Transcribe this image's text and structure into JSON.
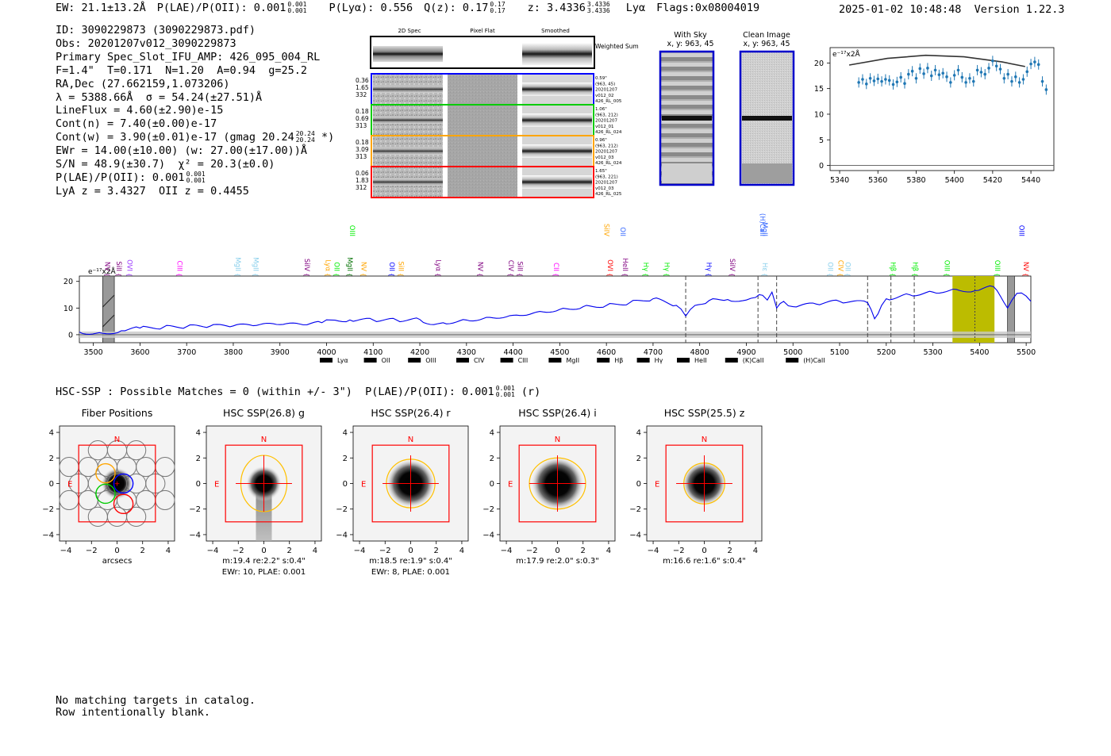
{
  "header": {
    "ew": "EW: 21.1±13.2Å",
    "plae": "P(LAE)/P(OII): 0.001",
    "plae_err_hi": "0.001",
    "plae_err_lo": "0.001",
    "plya": "P(Lyα): 0.556",
    "qz": "Q(z): 0.17",
    "qz_err_hi": "0.17",
    "qz_err_lo": "0.17",
    "z": "z: 3.4336",
    "z_err_hi": "3.4336",
    "z_err_lo": "3.4336",
    "line": "Lyα",
    "flags": "Flags:0x08004019",
    "timestamp": "2025-01-02 10:48:48  Version 1.22.3"
  },
  "info": {
    "id": "ID: 3090229873 (3090229873.pdf)",
    "obs": "Obs: 20201207v012_3090229873",
    "primary": "Primary Spec_Slot_IFU_AMP: 426_095_004_RL",
    "fit": "F=1.4\"  T=0.171  N=1.20  A=0.94  g=25.2",
    "radec": "RA,Dec (27.662159,1.073206)",
    "lambda": "λ = 5388.66Å  σ = 54.24(±27.51)Å",
    "lineflux": "LineFlux = 4.60(±2.90)e-15",
    "contn": "Cont(n) = 7.40(±0.00)e-17",
    "contw": "Cont(w) = 3.90(±0.01)e-17 (gmag 20.24",
    "contw_hi": "20.24",
    "contw_lo": "20.24",
    "contw_end": " *)",
    "ewr": "EWr = 14.00(±10.00) (w: 27.00(±17.00))Å",
    "sn": "S/N = 48.9(±30.7)  χ² = 20.3(±0.0)",
    "plae": "P(LAE)/P(OII): 0.001",
    "plae_hi": "0.001",
    "plae_lo": "0.001",
    "lya": "LyA z = 3.4327  OII z = 0.4455"
  },
  "cutouts": {
    "col_titles": [
      "2D Spec",
      "Pixel Flat",
      "Smoothed"
    ],
    "weighted_label": "Weighted Sum",
    "rows": [
      {
        "stats": [
          "0.36",
          "1.65",
          "332"
        ],
        "meta": [
          "0.59\"",
          "(963, 45)",
          "20201207",
          "v012_02",
          "426_RL_005"
        ],
        "color": "#0000ff"
      },
      {
        "stats": [
          "0.18",
          "0.69",
          "313"
        ],
        "meta": [
          "1.06\"",
          "(963, 212)",
          "20201207",
          "v012_01",
          "426_RL_024"
        ],
        "color": "#00cc00"
      },
      {
        "stats": [
          "0.18",
          "3.09",
          "313"
        ],
        "meta": [
          "0.96\"",
          "(963, 212)",
          "20201207",
          "v012_03",
          "426_RL_024"
        ],
        "color": "#ffa500"
      },
      {
        "stats": [
          "0.06",
          "1.83",
          "312"
        ],
        "meta": [
          "1.65\"",
          "(963, 221)",
          "20201207",
          "v012_03",
          "426_RL_025"
        ],
        "color": "#ff0000"
      }
    ],
    "sky_title": "With Sky",
    "clean_title": "Clean Image",
    "xy_label": "x, y: 963, 45"
  },
  "zoom": {
    "unit_label": "e⁻¹⁷x2Å",
    "x_ticks": [
      "5340",
      "5360",
      "5380",
      "5400",
      "5420",
      "5440"
    ],
    "y_ticks": [
      "0",
      "5",
      "10",
      "15",
      "20"
    ]
  },
  "spectrum": {
    "unit_label": "e⁻¹⁷x2Å",
    "x_ticks": [
      "3500",
      "3600",
      "3700",
      "3800",
      "3900",
      "4000",
      "4100",
      "4200",
      "4300",
      "4400",
      "4500",
      "4600",
      "4700",
      "4800",
      "4900",
      "5000",
      "5100",
      "5200",
      "5300",
      "5400",
      "5500"
    ],
    "y_ticks": [
      "0",
      "10",
      "20"
    ],
    "legend": [
      {
        "label": "Lyα",
        "color": "#ff0000"
      },
      {
        "label": "OII",
        "color": "#007000"
      },
      {
        "label": "OIII",
        "color": "#00ee00"
      },
      {
        "label": "CIV",
        "color": "#9933ff"
      },
      {
        "label": "CIII",
        "color": "#800080"
      },
      {
        "label": "MgII",
        "color": "#ff00ff"
      },
      {
        "label": "Hβ",
        "color": "#0000ff"
      },
      {
        "label": "Hγ",
        "color": "#3366ff"
      },
      {
        "label": "HeII",
        "color": "#ffa500"
      },
      {
        "label": "(K)CaII",
        "color": "#87ceeb"
      },
      {
        "label": "(H)CaII",
        "color": "#87ceeb"
      }
    ],
    "line_labels": [
      {
        "w": 3520,
        "t": "NV",
        "c": "#800080"
      },
      {
        "w": 3545,
        "t": "SiII",
        "c": "#800080"
      },
      {
        "w": 3568,
        "t": "OVI",
        "c": "#9933ff"
      },
      {
        "w": 3675,
        "t": "CIII",
        "c": "#ff00ff"
      },
      {
        "w": 3800,
        "t": "MgII",
        "c": "#87ceeb"
      },
      {
        "w": 3838,
        "t": "MgII",
        "c": "#87ceeb"
      },
      {
        "w": 3948,
        "t": "SiIV",
        "c": "#800080"
      },
      {
        "w": 3993,
        "t": "Lyα",
        "c": "#ffa500"
      },
      {
        "w": 4012,
        "t": "OII",
        "c": "#00ee00"
      },
      {
        "w": 4040,
        "t": "MgII",
        "c": "#007000"
      },
      {
        "w": 4070,
        "t": "NV",
        "c": "#ffa500"
      },
      {
        "w": 4130,
        "t": "OII",
        "c": "#0000ff"
      },
      {
        "w": 4150,
        "t": "SiII",
        "c": "#ffa500"
      },
      {
        "w": 4230,
        "t": "Lyα",
        "c": "#800080"
      },
      {
        "w": 4320,
        "t": "NV",
        "c": "#800080"
      },
      {
        "w": 4385,
        "t": "CIV",
        "c": "#800080"
      },
      {
        "w": 4405,
        "t": "SiII",
        "c": "#800080"
      },
      {
        "w": 4482,
        "t": "CII",
        "c": "#ff00ff"
      },
      {
        "w": 4598,
        "t": "OVI",
        "c": "#ff0000"
      },
      {
        "w": 4630,
        "t": "HeII",
        "c": "#800080"
      },
      {
        "w": 4675,
        "t": "Hγ",
        "c": "#00ee00"
      },
      {
        "w": 4720,
        "t": "Hγ",
        "c": "#00ee00"
      },
      {
        "w": 4810,
        "t": "Hγ",
        "c": "#0000ff"
      },
      {
        "w": 4860,
        "t": "SiIV",
        "c": "#800080"
      },
      {
        "w": 4930,
        "t": "Hε",
        "c": "#87ceeb"
      },
      {
        "w": 5070,
        "t": "OII",
        "c": "#87ceeb"
      },
      {
        "w": 5092,
        "t": "CIV",
        "c": "#ffa500"
      },
      {
        "w": 5108,
        "t": "OII",
        "c": "#87ceeb"
      },
      {
        "w": 5205,
        "t": "Hβ",
        "c": "#00ee00"
      },
      {
        "w": 5252,
        "t": "Hβ",
        "c": "#00ee00"
      },
      {
        "w": 5320,
        "t": "OIII",
        "c": "#00ee00"
      },
      {
        "w": 5428,
        "t": "OIII",
        "c": "#00ee00"
      },
      {
        "w": 5490,
        "t": "NV",
        "c": "#ff0000"
      }
    ],
    "upper_labels": [
      {
        "w": 4045,
        "t": "OIII",
        "c": "#00ee00"
      },
      {
        "w": 4590,
        "t": "SiIV",
        "c": "#ffa500"
      },
      {
        "w": 4625,
        "t": "OII",
        "c": "#3366ff"
      },
      {
        "w": 4925,
        "t": "(H)CaII",
        "c": "#3366ff"
      },
      {
        "w": 4930,
        "t": "MgII",
        "c": "#3366ff"
      },
      {
        "w": 5480,
        "t": "OIII",
        "c": "#0000ff"
      }
    ]
  },
  "chart_data": [
    {
      "type": "scatter",
      "title": "",
      "xlabel": "",
      "ylabel": "",
      "xlim": [
        5335,
        5452
      ],
      "ylim": [
        -1,
        23
      ],
      "x": [
        5350,
        5352,
        5354,
        5356,
        5358,
        5360,
        5362,
        5364,
        5366,
        5368,
        5370,
        5372,
        5374,
        5376,
        5378,
        5380,
        5382,
        5384,
        5386,
        5388,
        5390,
        5392,
        5394,
        5396,
        5398,
        5400,
        5402,
        5404,
        5406,
        5408,
        5410,
        5412,
        5414,
        5416,
        5418,
        5420,
        5422,
        5424,
        5426,
        5428,
        5430,
        5432,
        5434,
        5436,
        5438,
        5440,
        5442,
        5444,
        5446,
        5448
      ],
      "y": [
        16.2,
        16.8,
        15.9,
        17.0,
        16.5,
        16.9,
        16.4,
        16.8,
        16.6,
        15.8,
        16.3,
        17.2,
        16.0,
        17.8,
        18.4,
        17.0,
        18.9,
        17.9,
        19.0,
        17.5,
        18.6,
        17.7,
        18.0,
        17.3,
        16.2,
        17.6,
        18.6,
        17.2,
        16.2,
        17.0,
        16.4,
        18.6,
        18.2,
        17.8,
        19.0,
        20.4,
        19.4,
        18.8,
        17.0,
        17.8,
        16.4,
        17.3,
        16.2,
        16.8,
        18.3,
        19.8,
        20.2,
        19.7,
        16.4,
        14.8
      ],
      "yerr": 1.0,
      "model_curve": {
        "x": [
          5345,
          5365,
          5385,
          5405,
          5425,
          5437
        ],
        "y": [
          19.6,
          20.9,
          21.5,
          21.2,
          20.2,
          19.3
        ]
      }
    },
    {
      "type": "line",
      "title": "",
      "xlabel": "",
      "ylabel": "",
      "xlim": [
        3470,
        5510
      ],
      "ylim": [
        -3,
        22
      ],
      "series": [
        {
          "x": [
            3470,
            3520,
            3560,
            3600,
            3650,
            3700,
            3750,
            3800,
            3850,
            3900,
            3950,
            3990,
            4010,
            4050,
            4100,
            4150,
            4200,
            4230,
            4250,
            4300,
            4350,
            4400,
            4450,
            4500,
            4550,
            4600,
            4650,
            4700,
            4750,
            4770,
            4790,
            4820,
            4860,
            4900,
            4920,
            4935,
            4945,
            4955,
            4965,
            4980,
            5000,
            5050,
            5100,
            5160,
            5175,
            5190,
            5200,
            5250,
            5300,
            5350,
            5390,
            5430,
            5460,
            5480,
            5500,
            5510
          ],
          "y": [
            1,
            0.5,
            1.5,
            2.5,
            2.8,
            3,
            3.2,
            3.3,
            3.5,
            3.8,
            3.7,
            4.5,
            5.5,
            5.5,
            5.5,
            5.5,
            5.7,
            3.8,
            4.5,
            5.5,
            6.5,
            7.3,
            8.5,
            9.5,
            10.5,
            11,
            12,
            13.5,
            11,
            7,
            11,
            12.8,
            13.2,
            13,
            14,
            14.8,
            13,
            16,
            10,
            12.5,
            10.5,
            11.5,
            12.5,
            12,
            6,
            11,
            13.5,
            15,
            16,
            17,
            16.5,
            18,
            10,
            15.5,
            14.5,
            12.5
          ]
        }
      ],
      "highlight_band": [
        5342,
        5432
      ],
      "marker_lines": [
        4770,
        4925,
        4965,
        5160,
        5210,
        5260,
        5390
      ]
    }
  ],
  "hsc": {
    "title_line": "HSC-SSP : Possible Matches = 0 (within +/- 3\")  P(LAE)/P(OII): 0.001",
    "title_hi": "0.001",
    "title_lo": "0.001",
    "title_end": "(r)",
    "ticks": [
      "−4",
      "−2",
      "0",
      "2",
      "4"
    ],
    "north": "N",
    "east": "E",
    "panels": [
      {
        "title": "Fiber Positions",
        "caption1": "arcsecs",
        "caption2": ""
      },
      {
        "title": "HSC SSP(26.8) g",
        "caption1": "m:19.4  re:2.2\"  s:0.4\"",
        "caption2": "EWr: 10, PLAE: 0.001"
      },
      {
        "title": "HSC SSP(26.4) r",
        "caption1": "m:18.5  re:1.9\"  s:0.4\"",
        "caption2": "EWr: 8, PLAE: 0.001"
      },
      {
        "title": "HSC SSP(26.4) i",
        "caption1": "m:17.9  re:2.0\"  s:0.3\"",
        "caption2": ""
      },
      {
        "title": "HSC SSP(25.5) z",
        "caption1": "m:16.6  re:1.6\"  s:0.4\"",
        "caption2": ""
      }
    ]
  },
  "catalog": {
    "line1": "No matching targets in catalog.",
    "line2": "Row intentionally blank."
  }
}
